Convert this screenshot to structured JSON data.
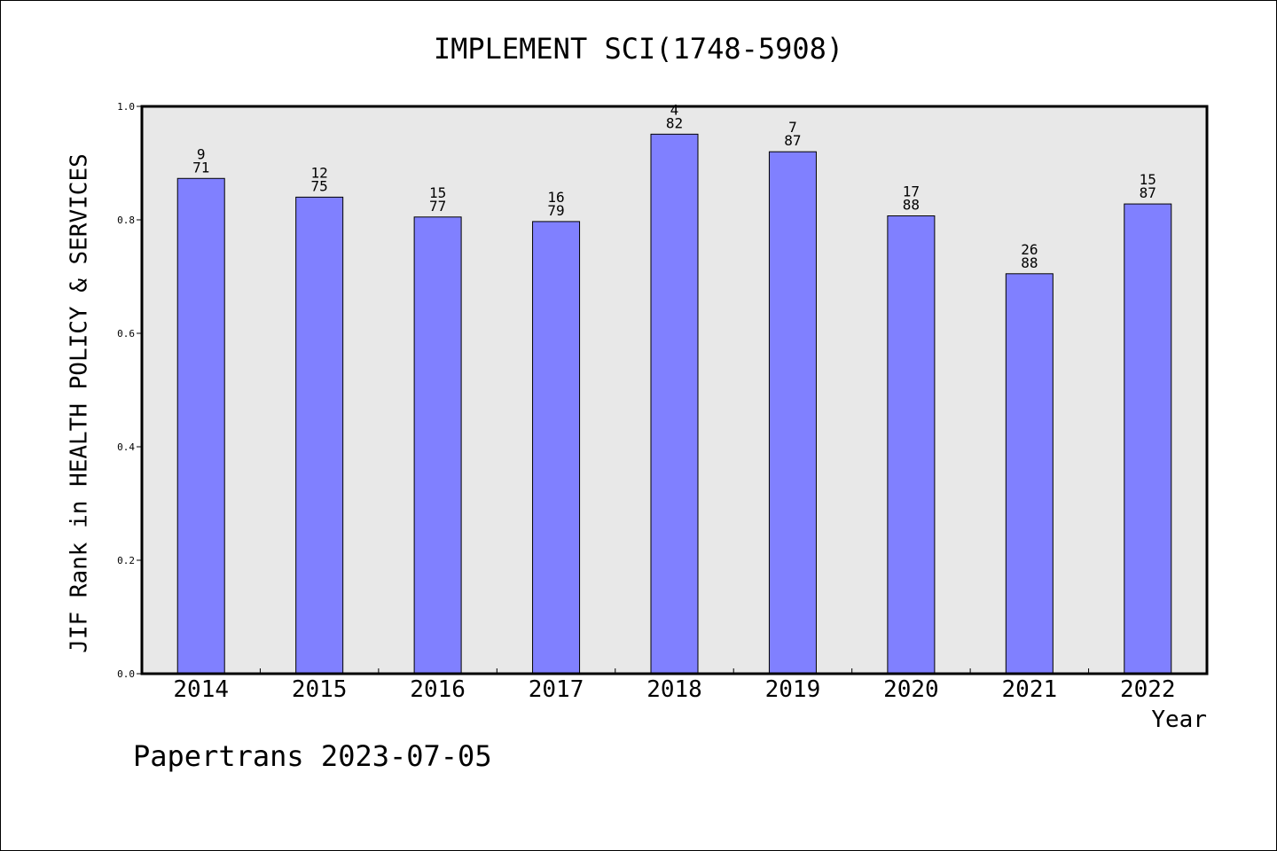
{
  "chart_data": {
    "type": "bar",
    "title": "IMPLEMENT SCI(1748-5908)",
    "xlabel": "Year",
    "ylabel": "JIF Rank in HEALTH POLICY & SERVICES",
    "ylim": [
      0,
      1.0
    ],
    "yticks": [
      "0.0",
      "0.2",
      "0.4",
      "0.6",
      "0.8",
      "1.0"
    ],
    "grid": false,
    "categories": [
      "2014",
      "2015",
      "2016",
      "2017",
      "2018",
      "2019",
      "2020",
      "2021",
      "2022"
    ],
    "values": [
      0.873,
      0.84,
      0.805,
      0.797,
      0.951,
      0.92,
      0.807,
      0.705,
      0.828
    ],
    "labels_top": [
      "9",
      "12",
      "15",
      "16",
      "4",
      "7",
      "17",
      "26",
      "15"
    ],
    "labels_bottom": [
      "71",
      "75",
      "77",
      "79",
      "82",
      "87",
      "88",
      "88",
      "87"
    ],
    "bar_color": "#8080ff",
    "plot_background": "#e8e8e8"
  },
  "footer": "Papertrans 2023-07-05"
}
